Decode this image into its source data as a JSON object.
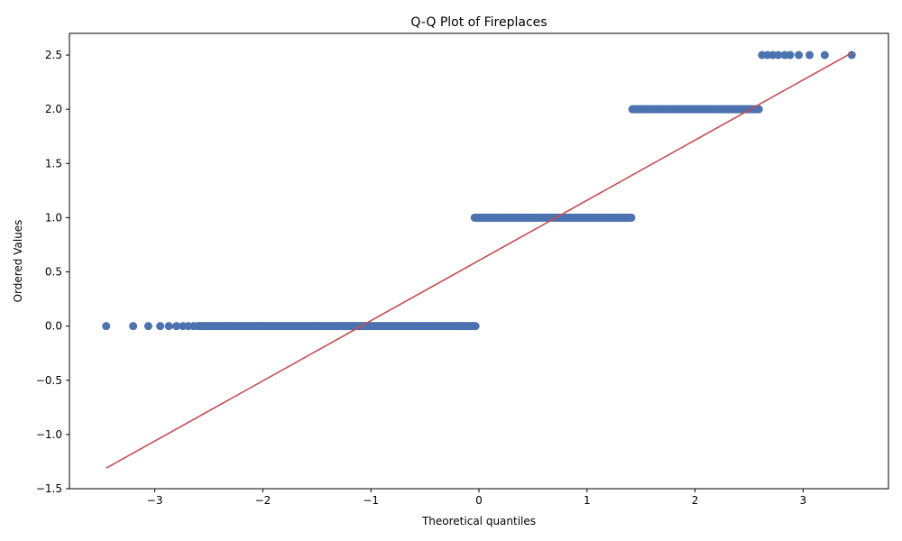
{
  "chart_data": {
    "type": "scatter",
    "title": "Q-Q Plot of Fireplaces",
    "xlabel": "Theoretical quantiles",
    "ylabel": "Ordered Values",
    "xlim": [
      -3.79,
      3.79
    ],
    "ylim": [
      -1.5,
      2.7
    ],
    "xticks": [
      -3,
      -2,
      -1,
      0,
      1,
      2,
      3
    ],
    "xtick_labels": [
      "−3",
      "−2",
      "−1",
      "0",
      "1",
      "2",
      "3"
    ],
    "yticks": [
      -1.5,
      -1.0,
      -0.5,
      0.0,
      0.5,
      1.0,
      1.5,
      2.0,
      2.5
    ],
    "ytick_labels": [
      "−1.5",
      "−1.0",
      "−0.5",
      "0.0",
      "0.5",
      "1.0",
      "1.5",
      "2.0",
      "2.5"
    ],
    "grid": false,
    "legend": "none",
    "series": [
      {
        "role": "ordered-values",
        "color": "#4c72b0",
        "segments": [
          {
            "y": 0.0,
            "x_from": -2.6,
            "x_to": -0.03,
            "step": 0.012
          },
          {
            "y": 1.0,
            "x_from": -0.04,
            "x_to": 1.41,
            "step": 0.01
          },
          {
            "y": 2.0,
            "x_from": 1.42,
            "x_to": 2.59,
            "step": 0.01
          }
        ],
        "points": [
          {
            "x": -3.45,
            "y": 0.0
          },
          {
            "x": -3.2,
            "y": 0.0
          },
          {
            "x": -3.06,
            "y": 0.0
          },
          {
            "x": -2.95,
            "y": 0.0
          },
          {
            "x": -2.87,
            "y": 0.0
          },
          {
            "x": -2.8,
            "y": 0.0
          },
          {
            "x": -2.74,
            "y": 0.0
          },
          {
            "x": -2.69,
            "y": 0.0
          },
          {
            "x": -2.64,
            "y": 0.0
          },
          {
            "x": 2.62,
            "y": 2.5
          },
          {
            "x": 2.67,
            "y": 2.5
          },
          {
            "x": 2.72,
            "y": 2.5
          },
          {
            "x": 2.77,
            "y": 2.5
          },
          {
            "x": 2.83,
            "y": 2.5
          },
          {
            "x": 2.88,
            "y": 2.5
          },
          {
            "x": 2.96,
            "y": 2.5
          },
          {
            "x": 3.06,
            "y": 2.5
          },
          {
            "x": 3.2,
            "y": 2.5
          },
          {
            "x": 3.45,
            "y": 2.5
          }
        ]
      },
      {
        "role": "fit-line",
        "type": "line",
        "color": "#c44e52",
        "x": [
          -3.45,
          3.45
        ],
        "y": [
          -1.31,
          2.52
        ]
      }
    ]
  }
}
